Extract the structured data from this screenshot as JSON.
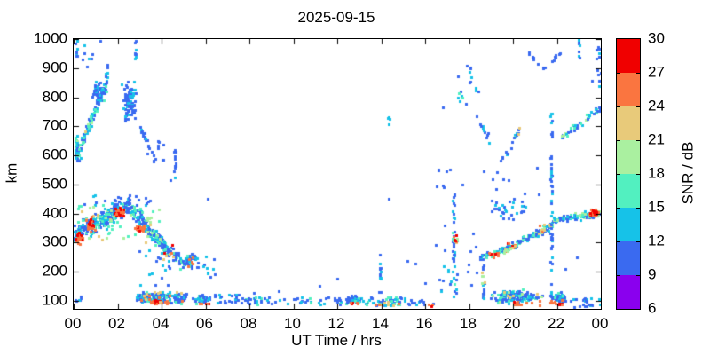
{
  "title": "2025-09-15",
  "chart_data": {
    "type": "scatter",
    "title": "2025-09-15",
    "xlabel": "UT Time / hrs",
    "ylabel": "km",
    "xlim": [
      0,
      24
    ],
    "ylim": [
      72,
      1000
    ],
    "x_ticks": {
      "values": [
        0,
        2,
        4,
        6,
        8,
        10,
        12,
        14,
        16,
        18,
        20,
        22,
        24
      ],
      "labels": [
        "00",
        "02",
        "04",
        "06",
        "08",
        "10",
        "12",
        "14",
        "16",
        "18",
        "20",
        "22",
        "00"
      ]
    },
    "y_ticks": {
      "values": [
        100,
        200,
        300,
        400,
        500,
        600,
        700,
        800,
        900,
        1000
      ],
      "labels": [
        "100",
        "200",
        "300",
        "400",
        "500",
        "600",
        "700",
        "800",
        "900",
        "1000"
      ]
    },
    "grid": false,
    "marker_px": 3,
    "seed": 20250915,
    "colorbar": {
      "label": "SNR / dB",
      "min": 6,
      "max": 30,
      "step": 3,
      "tick_labels": [
        "6",
        "9",
        "12",
        "15",
        "18",
        "21",
        "24",
        "27",
        "30"
      ],
      "colors": [
        "#8a00ee",
        "#3a6af0",
        "#16c2e8",
        "#52f0c0",
        "#aaf0a0",
        "#e8ca7a",
        "#fa7540",
        "#f00000"
      ]
    },
    "groups": [
      {
        "m": "d",
        "x": [
          0.0,
          2.6
        ],
        "y": [
          330,
          430
        ],
        "p": 45,
        "n": 260,
        "s": [
          9,
          19
        ]
      },
      {
        "m": "d",
        "x": [
          2.6,
          4.2
        ],
        "y": [
          420,
          280
        ],
        "p": 40,
        "n": 150,
        "s": [
          9,
          19
        ]
      },
      {
        "m": "u",
        "x": [
          0.3,
          3.5
        ],
        "y": [
          430,
          465
        ],
        "n": 25,
        "s": [
          9,
          13
        ]
      },
      {
        "m": "u",
        "x": [
          0.0,
          4.0
        ],
        "y": [
          300,
          430
        ],
        "n": 50,
        "s": [
          15,
          24
        ]
      },
      {
        "m": "g",
        "x": [
          0.0,
          0.5
        ],
        "y": [
          285,
          350
        ],
        "n": 30,
        "s": [
          24,
          30
        ]
      },
      {
        "m": "g",
        "x": [
          0.4,
          1.1
        ],
        "y": [
          330,
          400
        ],
        "n": 35,
        "s": [
          24,
          30
        ]
      },
      {
        "m": "g",
        "x": [
          1.8,
          2.4
        ],
        "y": [
          375,
          432
        ],
        "n": 30,
        "s": [
          24,
          30
        ]
      },
      {
        "m": "g",
        "x": [
          2.7,
          3.3
        ],
        "y": [
          325,
          372
        ],
        "n": 22,
        "s": [
          24,
          30
        ]
      },
      {
        "m": "d",
        "x": [
          4.0,
          5.0
        ],
        "y": [
          290,
          230
        ],
        "p": 28,
        "n": 55,
        "s": [
          9,
          18
        ]
      },
      {
        "m": "u",
        "x": [
          4.1,
          4.7
        ],
        "y": [
          235,
          295
        ],
        "n": 7,
        "s": [
          21,
          28
        ]
      },
      {
        "m": "g",
        "x": [
          4.9,
          5.7
        ],
        "y": [
          200,
          270
        ],
        "n": 40,
        "s": [
          9,
          18
        ]
      },
      {
        "m": "u",
        "x": [
          5.0,
          5.5
        ],
        "y": [
          210,
          248
        ],
        "n": 5,
        "s": [
          24,
          30
        ]
      },
      {
        "m": "u",
        "x": [
          5.6,
          6.5
        ],
        "y": [
          180,
          260
        ],
        "n": 15,
        "s": [
          9,
          15
        ]
      },
      {
        "m": "u",
        "x": [
          3.0,
          4.6
        ],
        "y": [
          150,
          285
        ],
        "n": 18,
        "s": [
          9,
          15
        ]
      },
      {
        "m": "g",
        "x": [
          0.0,
          0.25
        ],
        "y": [
          560,
          700
        ],
        "n": 30,
        "s": [
          12,
          24
        ]
      },
      {
        "m": "d",
        "x": [
          0.1,
          1.5
        ],
        "y": [
          590,
          850
        ],
        "p": 35,
        "n": 110,
        "s": [
          9,
          16
        ]
      },
      {
        "m": "d",
        "x": [
          0.2,
          1.0
        ],
        "y": [
          620,
          760
        ],
        "p": 20,
        "n": 18,
        "s": [
          15,
          22
        ]
      },
      {
        "m": "g",
        "x": [
          0.8,
          1.35
        ],
        "y": [
          770,
          880
        ],
        "n": 28,
        "s": [
          9,
          13
        ]
      },
      {
        "m": "v",
        "x": [
          1.5,
          1.5
        ],
        "y": [
          840,
          930
        ],
        "n": 9,
        "s": [
          9,
          13
        ]
      },
      {
        "m": "g",
        "x": [
          2.1,
          3.0
        ],
        "y": [
          680,
          880
        ],
        "n": 85,
        "s": [
          9,
          15
        ]
      },
      {
        "m": "v",
        "x": [
          2.8,
          2.8
        ],
        "y": [
          925,
          1000
        ],
        "n": 8,
        "s": [
          9,
          13
        ]
      },
      {
        "m": "d",
        "x": [
          3.0,
          3.7
        ],
        "y": [
          700,
          580
        ],
        "p": 25,
        "n": 22,
        "s": [
          9,
          13
        ]
      },
      {
        "m": "u",
        "x": [
          3.8,
          4.25
        ],
        "y": [
          580,
          665
        ],
        "n": 8,
        "s": [
          9,
          13
        ]
      },
      {
        "m": "v",
        "x": [
          4.62,
          4.62
        ],
        "y": [
          560,
          660
        ],
        "n": 9,
        "s": [
          9,
          13
        ]
      },
      {
        "m": "u",
        "x": [
          4.3,
          4.85
        ],
        "y": [
          515,
          565
        ],
        "n": 5,
        "s": [
          9,
          13
        ]
      },
      {
        "m": "v",
        "x": [
          0.12,
          0.12
        ],
        "y": [
          925,
          1000
        ],
        "n": 8,
        "s": [
          9,
          16
        ]
      },
      {
        "m": "u",
        "x": [
          0.3,
          1.4
        ],
        "y": [
          880,
          1000
        ],
        "n": 8,
        "s": [
          9,
          13
        ]
      },
      {
        "m": "d",
        "x": [
          2.9,
          5.1
        ],
        "y": [
          112,
          112
        ],
        "p": 26,
        "n": 160,
        "s": [
          9,
          18
        ]
      },
      {
        "m": "g",
        "x": [
          3.2,
          4.4
        ],
        "y": [
          84,
          106
        ],
        "n": 40,
        "s": [
          24,
          30
        ]
      },
      {
        "m": "u",
        "x": [
          3.0,
          5.0
        ],
        "y": [
          92,
          132
        ],
        "n": 18,
        "s": [
          21,
          27
        ]
      },
      {
        "m": "g",
        "x": [
          5.3,
          6.4
        ],
        "y": [
          86,
          126
        ],
        "n": 55,
        "s": [
          9,
          18
        ]
      },
      {
        "m": "u",
        "x": [
          5.7,
          6.15
        ],
        "y": [
          88,
          102
        ],
        "n": 7,
        "s": [
          24,
          30
        ]
      },
      {
        "m": "u",
        "x": [
          0.0,
          0.4
        ],
        "y": [
          98,
          118
        ],
        "n": 6,
        "s": [
          9,
          13
        ]
      },
      {
        "m": "u",
        "x": [
          6.4,
          7.7
        ],
        "y": [
          88,
          122
        ],
        "n": 26,
        "s": [
          9,
          15
        ]
      },
      {
        "m": "u",
        "x": [
          7.7,
          12.2
        ],
        "y": [
          86,
          112
        ],
        "n": 60,
        "s": [
          9,
          16
        ]
      },
      {
        "m": "g",
        "x": [
          12.2,
          13.3
        ],
        "y": [
          86,
          122
        ],
        "n": 45,
        "s": [
          9,
          18
        ]
      },
      {
        "m": "u",
        "x": [
          12.55,
          12.95
        ],
        "y": [
          90,
          103
        ],
        "n": 5,
        "s": [
          24,
          30
        ]
      },
      {
        "m": "u",
        "x": [
          13.3,
          15.0
        ],
        "y": [
          84,
          114
        ],
        "n": 48,
        "s": [
          9,
          18
        ]
      },
      {
        "m": "u",
        "x": [
          13.7,
          14.9
        ],
        "y": [
          83,
          98
        ],
        "n": 9,
        "s": [
          21,
          30
        ]
      },
      {
        "m": "u",
        "x": [
          15.0,
          16.6
        ],
        "y": [
          84,
          108
        ],
        "n": 14,
        "s": [
          9,
          15
        ]
      },
      {
        "m": "u",
        "x": [
          16.1,
          16.35
        ],
        "y": [
          80,
          92
        ],
        "n": 3,
        "s": [
          26,
          30
        ]
      },
      {
        "m": "v",
        "x": [
          13.95,
          13.95
        ],
        "y": [
          128,
          258
        ],
        "n": 14,
        "s": [
          9,
          16
        ]
      },
      {
        "m": "v",
        "x": [
          14.35,
          14.35
        ],
        "y": [
          688,
          745
        ],
        "n": 5,
        "s": [
          12,
          16
        ]
      },
      {
        "m": "v",
        "x": [
          17.3,
          17.3
        ],
        "y": [
          100,
          480
        ],
        "n": 32,
        "s": [
          9,
          16
        ]
      },
      {
        "m": "g",
        "x": [
          17.15,
          17.55
        ],
        "y": [
          288,
          340
        ],
        "n": 12,
        "s": [
          15,
          27
        ]
      },
      {
        "m": "u",
        "x": [
          17.25,
          17.45
        ],
        "y": [
          300,
          325
        ],
        "n": 3,
        "s": [
          27,
          30
        ]
      },
      {
        "m": "u",
        "x": [
          16.3,
          18.4
        ],
        "y": [
          115,
          300
        ],
        "n": 22,
        "s": [
          9,
          13
        ]
      },
      {
        "m": "v",
        "x": [
          18.65,
          18.65
        ],
        "y": [
          95,
          262
        ],
        "n": 16,
        "s": [
          9,
          16
        ]
      },
      {
        "m": "u",
        "x": [
          18.55,
          18.8
        ],
        "y": [
          148,
          235
        ],
        "n": 6,
        "s": [
          18,
          24
        ]
      },
      {
        "m": "d",
        "x": [
          18.5,
          20.2
        ],
        "y": [
          245,
          295
        ],
        "p": 15,
        "n": 80,
        "s": [
          9,
          18
        ]
      },
      {
        "m": "u",
        "x": [
          18.9,
          19.4
        ],
        "y": [
          243,
          266
        ],
        "n": 9,
        "s": [
          24,
          30
        ]
      },
      {
        "m": "u",
        "x": [
          19.75,
          20.1
        ],
        "y": [
          278,
          302
        ],
        "n": 8,
        "s": [
          24,
          30
        ]
      },
      {
        "m": "d",
        "x": [
          19.5,
          20.05
        ],
        "y": [
          262,
          288
        ],
        "p": 6,
        "n": 10,
        "s": [
          18,
          27
        ]
      },
      {
        "m": "d",
        "x": [
          20.2,
          21.8
        ],
        "y": [
          300,
          360
        ],
        "p": 15,
        "n": 90,
        "s": [
          9,
          20
        ]
      },
      {
        "m": "u",
        "x": [
          21.0,
          21.7
        ],
        "y": [
          330,
          365
        ],
        "n": 10,
        "s": [
          21,
          28
        ]
      },
      {
        "m": "d",
        "x": [
          21.8,
          24.0
        ],
        "y": [
          378,
          402
        ],
        "p": 16,
        "n": 130,
        "s": [
          9,
          21
        ]
      },
      {
        "m": "g",
        "x": [
          23.4,
          24.0
        ],
        "y": [
          388,
          420
        ],
        "n": 22,
        "s": [
          24,
          30
        ]
      },
      {
        "m": "u",
        "x": [
          19.0,
          20.6
        ],
        "y": [
          378,
          452
        ],
        "n": 32,
        "s": [
          9,
          14
        ]
      },
      {
        "m": "u",
        "x": [
          16.5,
          21.5
        ],
        "y": [
          455,
          560
        ],
        "n": 18,
        "s": [
          9,
          12
        ]
      },
      {
        "m": "v",
        "x": [
          21.75,
          21.75
        ],
        "y": [
          100,
          760
        ],
        "n": 55,
        "s": [
          9,
          15
        ]
      },
      {
        "m": "g",
        "x": [
          18.7,
          21.6
        ],
        "y": [
          84,
          146
        ],
        "n": 150,
        "s": [
          9,
          18
        ]
      },
      {
        "m": "u",
        "x": [
          19.9,
          21.3
        ],
        "y": [
          83,
          100
        ],
        "n": 12,
        "s": [
          24,
          30
        ]
      },
      {
        "m": "u",
        "x": [
          19.0,
          21.5
        ],
        "y": [
          95,
          132
        ],
        "n": 10,
        "s": [
          18,
          24
        ]
      },
      {
        "m": "g",
        "x": [
          21.6,
          22.6
        ],
        "y": [
          84,
          136
        ],
        "n": 55,
        "s": [
          9,
          18
        ]
      },
      {
        "m": "u",
        "x": [
          21.7,
          22.35
        ],
        "y": [
          86,
          103
        ],
        "n": 14,
        "s": [
          24,
          30
        ]
      },
      {
        "m": "u",
        "x": [
          22.6,
          24.0
        ],
        "y": [
          78,
          126
        ],
        "n": 18,
        "s": [
          9,
          15
        ]
      },
      {
        "m": "v",
        "x": [
          23.3,
          23.3
        ],
        "y": [
          72,
          118
        ],
        "n": 6,
        "s": [
          9,
          13
        ]
      },
      {
        "m": "d",
        "x": [
          19.4,
          20.35
        ],
        "y": [
          565,
          695
        ],
        "p": 12,
        "n": 16,
        "s": [
          9,
          16
        ]
      },
      {
        "m": "u",
        "x": [
          20.25,
          20.4
        ],
        "y": [
          672,
          700
        ],
        "n": 2,
        "s": [
          21,
          27
        ]
      },
      {
        "m": "d",
        "x": [
          20.6,
          21.4
        ],
        "y": [
          962,
          900
        ],
        "p": 8,
        "n": 9,
        "s": [
          9,
          12
        ]
      },
      {
        "m": "d",
        "x": [
          21.4,
          22.2
        ],
        "y": [
          900,
          958
        ],
        "p": 8,
        "n": 9,
        "s": [
          9,
          12
        ]
      },
      {
        "m": "d",
        "x": [
          22.2,
          24.0
        ],
        "y": [
          660,
          770
        ],
        "p": 20,
        "n": 45,
        "s": [
          9,
          20
        ]
      },
      {
        "m": "u",
        "x": [
          23.6,
          24.0
        ],
        "y": [
          830,
          1000
        ],
        "n": 12,
        "s": [
          9,
          15
        ]
      },
      {
        "m": "v",
        "x": [
          23.0,
          23.0
        ],
        "y": [
          925,
          1000
        ],
        "n": 8,
        "s": [
          9,
          13
        ]
      },
      {
        "m": "v",
        "x": [
          18.05,
          18.05
        ],
        "y": [
          838,
          905
        ],
        "n": 6,
        "s": [
          9,
          15
        ]
      },
      {
        "m": "u",
        "x": [
          16.8,
          18.45
        ],
        "y": [
          740,
          985
        ],
        "n": 9,
        "s": [
          9,
          13
        ]
      },
      {
        "m": "u",
        "x": [
          17.35,
          17.75
        ],
        "y": [
          788,
          822
        ],
        "n": 4,
        "s": [
          12,
          18
        ]
      },
      {
        "m": "d",
        "x": [
          18.3,
          19.15
        ],
        "y": [
          758,
          608
        ],
        "p": 15,
        "n": 12,
        "s": [
          9,
          15
        ]
      }
    ],
    "extra_points": [
      [
        12.0,
        176,
        10
      ],
      [
        11.2,
        150,
        10
      ],
      [
        9.35,
        133,
        10
      ],
      [
        14.35,
        452,
        10
      ],
      [
        15.2,
        238,
        10
      ],
      [
        15.55,
        228,
        10
      ],
      [
        6.1,
        452,
        10
      ],
      [
        8.2,
        128,
        11
      ],
      [
        16.0,
        160,
        10
      ],
      [
        22.4,
        210,
        10
      ],
      [
        22.9,
        250,
        10
      ],
      [
        18.2,
        330,
        10
      ],
      [
        16.9,
        360,
        10
      ]
    ]
  }
}
